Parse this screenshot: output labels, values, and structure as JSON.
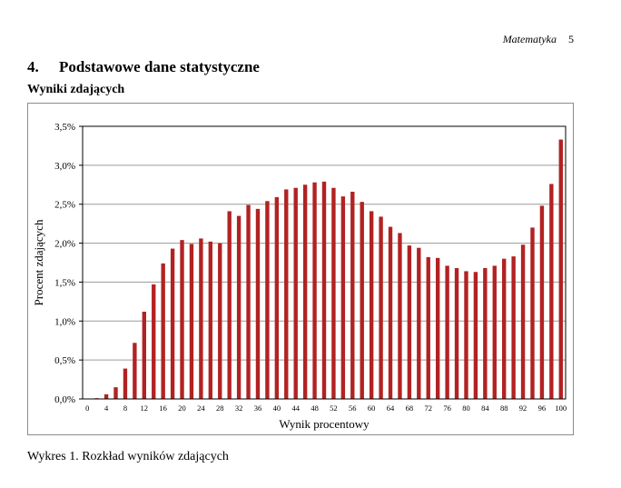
{
  "header": {
    "subject": "Matematyka",
    "page_number": "5"
  },
  "section": {
    "number": "4.",
    "title": "Podstawowe dane statystyczne"
  },
  "subsection": {
    "title": "Wyniki zdających"
  },
  "caption": "Wykres 1. Rozkład wyników zdających",
  "chart_data": {
    "type": "bar",
    "xlabel": "Wynik procentowy",
    "ylabel": "Procent zdających",
    "ylim": [
      0,
      3.5
    ],
    "y_ticks": [
      "0,0%",
      "0,5%",
      "1,0%",
      "1,5%",
      "2,0%",
      "2,5%",
      "3,0%",
      "3,5%"
    ],
    "x_tick_labels": [
      "0",
      "4",
      "8",
      "12",
      "16",
      "20",
      "24",
      "28",
      "32",
      "36",
      "40",
      "44",
      "48",
      "52",
      "56",
      "60",
      "64",
      "68",
      "72",
      "76",
      "80",
      "84",
      "88",
      "92",
      "96",
      "100"
    ],
    "grid": true,
    "bar_color": "#b22222",
    "categories": [
      0,
      2,
      4,
      6,
      8,
      10,
      12,
      14,
      16,
      18,
      20,
      22,
      24,
      26,
      28,
      30,
      32,
      34,
      36,
      38,
      40,
      42,
      44,
      46,
      48,
      50,
      52,
      54,
      56,
      58,
      60,
      62,
      64,
      66,
      68,
      70,
      72,
      74,
      76,
      78,
      80,
      82,
      84,
      86,
      88,
      90,
      92,
      94,
      96,
      98,
      100
    ],
    "values": [
      0.0,
      0.01,
      0.06,
      0.15,
      0.39,
      0.72,
      1.12,
      1.47,
      1.74,
      1.93,
      2.04,
      1.99,
      2.06,
      2.02,
      2.0,
      2.41,
      2.35,
      2.49,
      2.44,
      2.54,
      2.59,
      2.69,
      2.71,
      2.75,
      2.78,
      2.79,
      2.71,
      2.6,
      2.66,
      2.53,
      2.41,
      2.34,
      2.21,
      2.13,
      1.97,
      1.94,
      1.82,
      1.81,
      1.71,
      1.68,
      1.64,
      1.63,
      1.68,
      1.71,
      1.8,
      1.83,
      1.98,
      2.2,
      2.48,
      2.76,
      3.33
    ]
  }
}
